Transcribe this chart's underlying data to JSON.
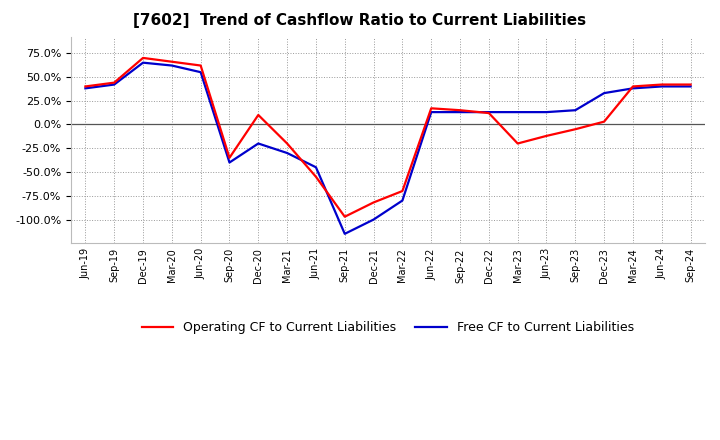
{
  "title": "[7602]  Trend of Cashflow Ratio to Current Liabilities",
  "x_labels": [
    "Jun-19",
    "Sep-19",
    "Dec-19",
    "Mar-20",
    "Jun-20",
    "Sep-20",
    "Dec-20",
    "Mar-21",
    "Jun-21",
    "Sep-21",
    "Dec-21",
    "Mar-22",
    "Jun-22",
    "Sep-22",
    "Dec-22",
    "Mar-23",
    "Jun-23",
    "Sep-23",
    "Dec-23",
    "Mar-24",
    "Jun-24",
    "Sep-24"
  ],
  "operating_cf": [
    40.0,
    44.0,
    70.0,
    66.0,
    62.0,
    -35.0,
    10.0,
    -20.0,
    -55.0,
    -97.0,
    -82.0,
    -70.0,
    17.0,
    15.0,
    12.0,
    -20.0,
    -12.0,
    -5.0,
    3.0,
    40.0,
    42.0,
    42.0
  ],
  "free_cf": [
    38.0,
    42.0,
    65.0,
    62.0,
    55.0,
    -40.0,
    -20.0,
    -30.0,
    -45.0,
    -115.0,
    -100.0,
    -80.0,
    13.0,
    13.0,
    13.0,
    13.0,
    13.0,
    15.0,
    33.0,
    38.0,
    40.0,
    40.0
  ],
  "operating_color": "#ff0000",
  "free_color": "#0000cc",
  "ylim": [
    -125.0,
    92.0
  ],
  "yticks": [
    -100.0,
    -75.0,
    -50.0,
    -25.0,
    0.0,
    25.0,
    50.0,
    75.0
  ],
  "background_color": "#ffffff",
  "grid_color": "#999999",
  "legend_op": "Operating CF to Current Liabilities",
  "legend_free": "Free CF to Current Liabilities"
}
